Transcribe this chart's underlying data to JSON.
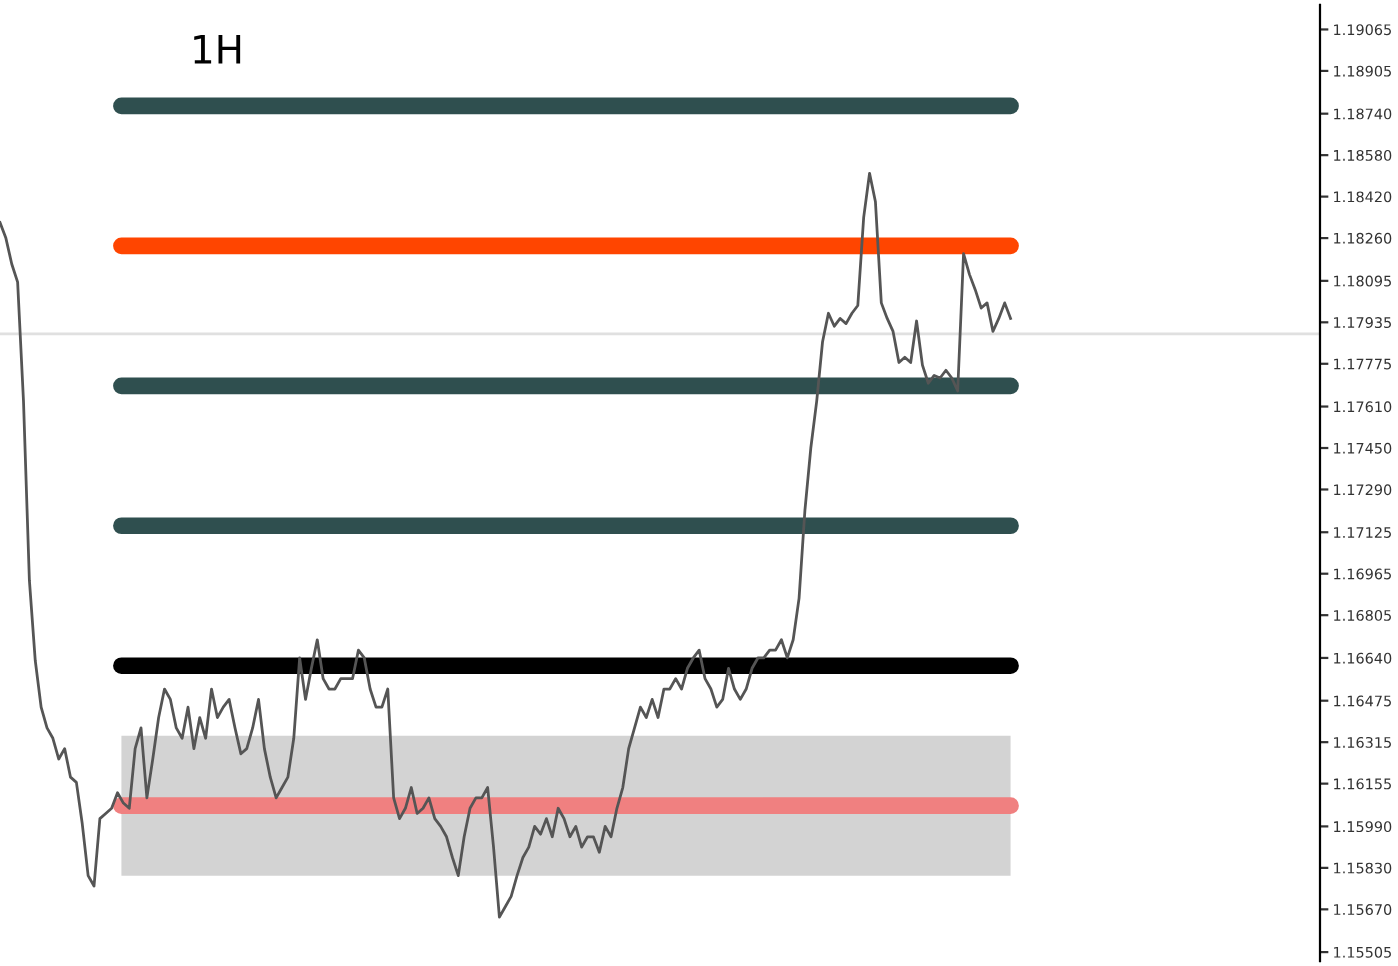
{
  "chart_data": {
    "type": "line",
    "annotations": [
      "1H"
    ],
    "categories": [
      null,
      null,
      null,
      null,
      null,
      null,
      null,
      null,
      null,
      null,
      null,
      null,
      null,
      null,
      null,
      null,
      null,
      null,
      null,
      null,
      null,
      null,
      null,
      null,
      null,
      null,
      null,
      null,
      null,
      null,
      null,
      null,
      null,
      null,
      null,
      null,
      null,
      null,
      null,
      null,
      null,
      null,
      null,
      null,
      null,
      null,
      null,
      null,
      null,
      null,
      null,
      null,
      null,
      null,
      null,
      null,
      null,
      null,
      null,
      null,
      null,
      null,
      null,
      null,
      null,
      null,
      null,
      null,
      null,
      null,
      null,
      null,
      null,
      null,
      null,
      null,
      null,
      null,
      null,
      null,
      null,
      null,
      null,
      null,
      null,
      null,
      null,
      null,
      null,
      null,
      null,
      null,
      null,
      null,
      null,
      null,
      null,
      null,
      null,
      null,
      null,
      null,
      null,
      null,
      null,
      null,
      null,
      null,
      null,
      null,
      null,
      null,
      null,
      null,
      null,
      null,
      null,
      null,
      null,
      null,
      null,
      null,
      null,
      null,
      null,
      null,
      null,
      null,
      null,
      null,
      null,
      null,
      null,
      null,
      null,
      null,
      null,
      null,
      null,
      null,
      null,
      null,
      null,
      null,
      null,
      null,
      null,
      null,
      null,
      null,
      null,
      null,
      null,
      null,
      null,
      null,
      null,
      null,
      null,
      null,
      null,
      null,
      null,
      null,
      null,
      null,
      null,
      null,
      null,
      null,
      null,
      null,
      null
    ],
    "series": [
      {
        "color": "#555555",
        "values": [
          1.1832,
          1.1826,
          1.1816,
          1.1809,
          1.1763,
          1.1694,
          1.1663,
          1.1645,
          1.1637,
          1.1633,
          1.1625,
          1.1629,
          1.1618,
          1.1616,
          1.16,
          1.158,
          1.1576,
          1.1602,
          1.1604,
          1.1606,
          1.1612,
          1.1608,
          1.1606,
          1.1629,
          1.1637,
          1.161,
          1.1625,
          1.1641,
          1.1652,
          1.1648,
          1.1637,
          1.1633,
          1.1645,
          1.1629,
          1.1641,
          1.1633,
          1.1652,
          1.1641,
          1.1645,
          1.1648,
          1.1637,
          1.1627,
          1.1629,
          1.1637,
          1.1648,
          1.1629,
          1.1618,
          1.161,
          1.1614,
          1.1618,
          1.1633,
          1.1664,
          1.1648,
          1.166,
          1.1671,
          1.1656,
          1.1652,
          1.1652,
          1.1656,
          1.1656,
          1.1656,
          1.1667,
          1.1664,
          1.1652,
          1.1645,
          1.1645,
          1.1652,
          1.161,
          1.1602,
          1.1606,
          1.1614,
          1.1604,
          1.1606,
          1.161,
          1.1602,
          1.1599,
          1.1595,
          1.1587,
          1.158,
          1.1595,
          1.1606,
          1.161,
          1.161,
          1.1614,
          1.1591,
          1.1564,
          1.1568,
          1.1572,
          1.158,
          1.1587,
          1.1591,
          1.1599,
          1.1596,
          1.1602,
          1.1595,
          1.1606,
          1.1602,
          1.1595,
          1.1599,
          1.1591,
          1.1595,
          1.1595,
          1.1589,
          1.1599,
          1.1595,
          1.1606,
          1.1614,
          1.1629,
          1.1637,
          1.1645,
          1.1641,
          1.1648,
          1.1641,
          1.1652,
          1.1652,
          1.1656,
          1.1652,
          1.166,
          1.1664,
          1.1667,
          1.1656,
          1.1652,
          1.1645,
          1.1648,
          1.166,
          1.1652,
          1.1648,
          1.1652,
          1.166,
          1.1664,
          1.1664,
          1.1667,
          1.1667,
          1.1671,
          1.1664,
          1.1671,
          1.1687,
          1.1721,
          1.1745,
          1.1763,
          1.1786,
          1.1797,
          1.1792,
          1.1795,
          1.1793,
          1.1797,
          1.18,
          1.1834,
          1.1851,
          1.184,
          1.1801,
          1.1795,
          1.179,
          1.1778,
          1.178,
          1.1778,
          1.1794,
          1.1777,
          1.177,
          1.1773,
          1.1772,
          1.1775,
          1.1772,
          1.1767,
          1.182,
          1.1812,
          1.1806,
          1.1799,
          1.1801,
          1.179,
          1.1795,
          1.1801,
          1.1795
        ]
      }
    ],
    "ylim": [
      1.1547,
      1.1916
    ],
    "yticks": [
      1.19065,
      1.18905,
      {
        "value": 1.1874,
        "label": "1.18740"
      },
      {
        "value": 1.1858,
        "label": "1.18580"
      },
      {
        "value": 1.1842,
        "label": "1.18420"
      },
      {
        "value": 1.1826,
        "label": "1.18260"
      },
      1.18095,
      1.17935,
      1.17775,
      {
        "value": 1.1761,
        "label": "1.17610"
      },
      {
        "value": 1.1745,
        "label": "1.17450"
      },
      {
        "value": 1.1729,
        "label": "1.17290"
      },
      1.17125,
      1.16965,
      1.16805,
      {
        "value": 1.1664,
        "label": "1.16640"
      },
      1.16475,
      1.16315,
      1.16155,
      {
        "value": 1.1599,
        "label": "1.15990"
      },
      {
        "value": 1.1583,
        "label": "1.15830"
      },
      {
        "value": 1.1567,
        "label": "1.15670"
      },
      1.15505
    ],
    "ref_lines": [
      {
        "axis": "y",
        "value": 1.1877,
        "color": "#2f4f4f"
      },
      {
        "axis": "y",
        "value": 1.1823,
        "color": "#ff4500"
      },
      {
        "axis": "y",
        "value": 1.1769,
        "color": "#2f4f4f"
      },
      {
        "axis": "y",
        "value": 1.1715,
        "color": "#2f4f4f"
      },
      {
        "axis": "y",
        "value": 1.1661,
        "color": "#000000"
      },
      {
        "axis": "y",
        "value": 1.1607,
        "color": "#f08080"
      },
      {
        "axis": "y",
        "value": 1.1789,
        "color": "#e0e0e0"
      }
    ],
    "bands": [
      {
        "axis": "y",
        "from": 1.158,
        "to": 1.1634,
        "color": "#d3d3d3"
      }
    ],
    "tick_labels": "y",
    "line_style": "solid",
    "marker": "none"
  }
}
